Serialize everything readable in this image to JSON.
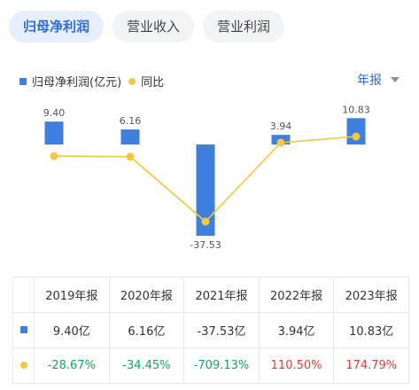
{
  "tabs": [
    {
      "label": "归母净利润",
      "active": true
    },
    {
      "label": "营业收入",
      "active": false
    },
    {
      "label": "营业利润",
      "active": false
    }
  ],
  "legend": {
    "bar": "归母净利润(亿元)",
    "line": "同比"
  },
  "period_selector": "年报",
  "colors": {
    "bar": "#3f7fde",
    "line": "#f2c744",
    "negative": "#1aa15f",
    "positive": "#e2413b",
    "accent": "#2f6bdc"
  },
  "chart_data": {
    "type": "bar",
    "categories": [
      "2019年报",
      "2020年报",
      "2021年报",
      "2022年报",
      "2023年报"
    ],
    "series": [
      {
        "name": "归母净利润(亿元)",
        "type": "bar",
        "values": [
          9.4,
          6.16,
          -37.53,
          3.94,
          10.83
        ],
        "labels": [
          "9.40",
          "6.16",
          "-37.53",
          "3.94",
          "10.83"
        ]
      },
      {
        "name": "同比",
        "type": "line",
        "values": [
          -28.67,
          -34.45,
          -709.13,
          110.5,
          174.79
        ]
      }
    ]
  },
  "table": {
    "headers": [
      "2019年报",
      "2020年报",
      "2021年报",
      "2022年报",
      "2023年报"
    ],
    "profit_row": [
      "9.40亿",
      "6.16亿",
      "-37.53亿",
      "3.94亿",
      "10.83亿"
    ],
    "yoy_row": [
      "-28.67%",
      "-34.45%",
      "-709.13%",
      "110.50%",
      "174.79%"
    ]
  }
}
